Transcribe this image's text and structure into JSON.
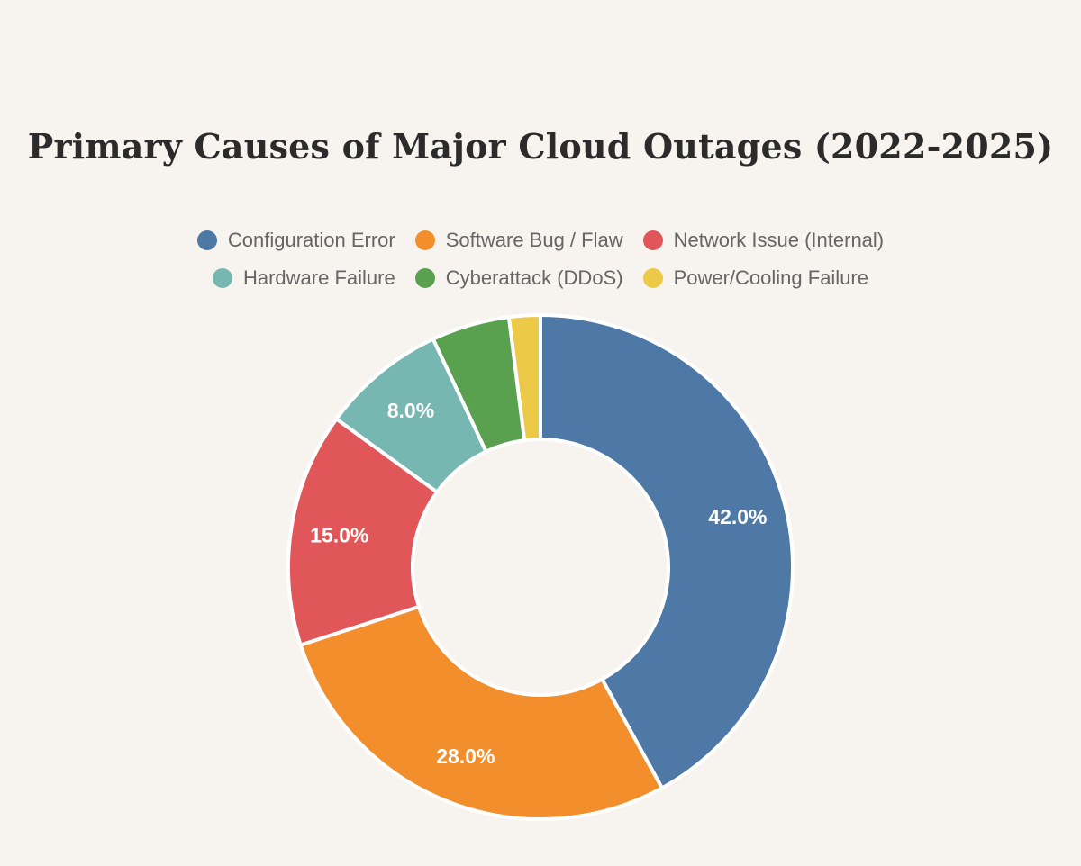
{
  "chart_data": {
    "type": "pie",
    "variant": "donut",
    "title": "Primary Causes of Major Cloud Outages (2022-2025)",
    "legend_position": "top",
    "unit": "%",
    "slices": [
      {
        "name": "Configuration Error",
        "value": 42.0,
        "label": "42.0%",
        "color": "#4e78a6"
      },
      {
        "name": "Software Bug / Flaw",
        "value": 28.0,
        "label": "28.0%",
        "color": "#f28f2c"
      },
      {
        "name": "Network Issue (Internal)",
        "value": 15.0,
        "label": "15.0%",
        "color": "#e05659"
      },
      {
        "name": "Hardware Failure",
        "value": 8.0,
        "label": "8.0%",
        "color": "#76b7b2"
      },
      {
        "name": "Cyberattack (DDoS)",
        "value": 5.0,
        "label": "",
        "color": "#59a14f"
      },
      {
        "name": "Power/Cooling Failure",
        "value": 2.0,
        "label": "",
        "color": "#edc948"
      }
    ]
  }
}
